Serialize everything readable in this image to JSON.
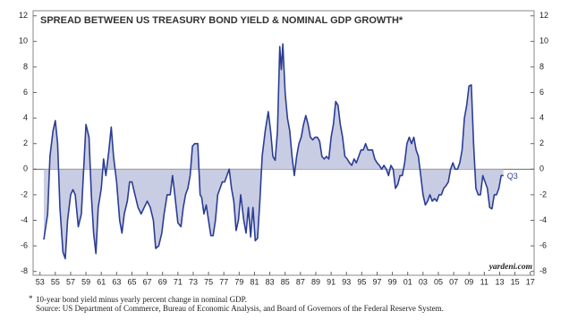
{
  "chart_data": {
    "type": "line",
    "title": "SPREAD BETWEEN US TREASURY BOND YIELD & NOMINAL GDP GROWTH*",
    "annotation": "Q3",
    "watermark": "yardeni.com",
    "footnote": {
      "marker": "*",
      "lines": [
        "10-year bond yield minus yearly percent change in nominal GDP.",
        "Source: US Department of Commerce, Bureau of Economic Analysis, and Board of Governors of the Federal Reserve System."
      ]
    },
    "color": "#2b3d94",
    "fill_color": "#c9cde3",
    "x": [
      1953.5,
      1954,
      1954.3,
      1954.7,
      1955,
      1955.3,
      1955.6,
      1956,
      1956.3,
      1956.6,
      1957,
      1957.3,
      1957.6,
      1958,
      1958.4,
      1958.7,
      1959,
      1959.4,
      1959.7,
      1960,
      1960.3,
      1960.6,
      1961,
      1961.3,
      1961.6,
      1962,
      1962.3,
      1962.6,
      1963,
      1963.4,
      1963.7,
      1964,
      1964.4,
      1964.7,
      1965,
      1965.4,
      1965.8,
      1966.2,
      1966.6,
      1967,
      1967.4,
      1967.8,
      1968.1,
      1968.5,
      1968.9,
      1969.2,
      1969.6,
      1970,
      1970.3,
      1970.6,
      1971,
      1971.4,
      1971.7,
      1972,
      1972.3,
      1972.6,
      1972.9,
      1973.2,
      1973.6,
      1973.9,
      1974.1,
      1974.4,
      1974.7,
      1975,
      1975.3,
      1975.6,
      1975.9,
      1976.2,
      1976.5,
      1976.8,
      1977.1,
      1977.4,
      1977.7,
      1978,
      1978.3,
      1978.6,
      1978.9,
      1979.2,
      1979.6,
      1979.9,
      1980.2,
      1980.5,
      1980.8,
      1981.1,
      1981.4,
      1981.7,
      1982,
      1982.4,
      1982.8,
      1983.1,
      1983.4,
      1983.7,
      1984,
      1984.3,
      1984.5,
      1984.7,
      1985,
      1985.3,
      1985.6,
      1985.9,
      1986.2,
      1986.5,
      1986.8,
      1987.1,
      1987.4,
      1987.7,
      1988,
      1988.3,
      1988.6,
      1988.9,
      1989.2,
      1989.5,
      1989.8,
      1990.1,
      1990.4,
      1990.7,
      1991,
      1991.3,
      1991.6,
      1991.9,
      1992.2,
      1992.5,
      1992.8,
      1993.1,
      1993.4,
      1993.7,
      1994,
      1994.3,
      1994.6,
      1994.9,
      1995.2,
      1995.5,
      1995.8,
      1996.1,
      1996.4,
      1996.7,
      1997,
      1997.3,
      1997.6,
      1997.9,
      1998.2,
      1998.5,
      1998.8,
      1999.1,
      1999.4,
      1999.7,
      2000,
      2000.3,
      2000.6,
      2000.9,
      2001.2,
      2001.5,
      2001.8,
      2002.1,
      2002.4,
      2002.7,
      2003,
      2003.3,
      2003.6,
      2003.9,
      2004.2,
      2004.5,
      2004.8,
      2005.1,
      2005.4,
      2005.7,
      2006,
      2006.3,
      2006.6,
      2006.9,
      2007.2,
      2007.5,
      2007.8,
      2008.1,
      2008.4,
      2008.7,
      2009,
      2009.3,
      2009.6,
      2009.9,
      2010.2,
      2010.5,
      2010.8,
      2011.1,
      2011.4,
      2011.7,
      2012,
      2012.3,
      2012.6,
      2012.9,
      2013.2,
      2013.5
    ],
    "values": [
      -5.5,
      -3.5,
      1,
      3,
      3.8,
      2,
      -3,
      -6.5,
      -7,
      -4,
      -2,
      -1.6,
      -2,
      -4.5,
      -3.5,
      0,
      3.5,
      2.5,
      -2,
      -5,
      -6.6,
      -3,
      -1.5,
      0.8,
      -0.5,
      1.5,
      3.3,
      1,
      -1,
      -4,
      -5,
      -3.5,
      -2.5,
      -1,
      -1,
      -2,
      -3,
      -3.5,
      -3,
      -2.5,
      -3,
      -4,
      -6.2,
      -6,
      -5,
      -3.5,
      -2,
      -2,
      -0.5,
      -2,
      -4.2,
      -4.5,
      -3,
      -2,
      -1.5,
      -0.5,
      1.8,
      2,
      2,
      -2,
      -2.2,
      -3.5,
      -2.8,
      -4,
      -5.2,
      -5.2,
      -4,
      -2,
      -1.5,
      -1,
      -1,
      -0.5,
      0,
      -1.5,
      -2.5,
      -4.8,
      -4,
      -2,
      -4,
      -5,
      -3,
      -5.3,
      -3,
      -5.6,
      -5.4,
      -2.5,
      1,
      3,
      4.5,
      3,
      1,
      0.7,
      3,
      9.6,
      7.8,
      9.8,
      6,
      4,
      3,
      1,
      -0.5,
      1,
      2,
      2.5,
      3.5,
      4.2,
      3.5,
      2.5,
      2.3,
      2.5,
      2.5,
      2.2,
      1,
      0.8,
      1,
      0.8,
      2.5,
      3.5,
      5.3,
      5,
      3.5,
      2.5,
      1,
      0.8,
      0.5,
      0.3,
      0.8,
      0.5,
      1,
      1.5,
      1.5,
      2,
      1.5,
      1.5,
      1.5,
      0.8,
      0.5,
      0.3,
      0,
      0.3,
      0,
      -0.5,
      0.3,
      0,
      -1.5,
      -1.2,
      -0.5,
      -0.5,
      0.5,
      2,
      2.5,
      2,
      2.5,
      1.5,
      1,
      -0.5,
      -2,
      -2.8,
      -2.5,
      -2,
      -2.5,
      -2.3,
      -2.5,
      -2,
      -2,
      -1.5,
      -1.3,
      -1,
      0,
      0.5,
      0,
      0,
      0.5,
      1.5,
      4,
      5,
      6.5,
      6.6,
      2,
      -1.5,
      -2,
      -2,
      -0.5,
      -1,
      -1.5,
      -3,
      -3.1,
      -2,
      -2,
      -1.5,
      -0.5,
      -0.5
    ],
    "xlim": [
      1952.1,
      2017.5
    ],
    "xticks": [
      {
        "value": 1953,
        "label": "53"
      },
      {
        "value": 1955,
        "label": "55"
      },
      {
        "value": 1957,
        "label": "57"
      },
      {
        "value": 1959,
        "label": "59"
      },
      {
        "value": 1961,
        "label": "61"
      },
      {
        "value": 1963,
        "label": "63"
      },
      {
        "value": 1965,
        "label": "65"
      },
      {
        "value": 1967,
        "label": "67"
      },
      {
        "value": 1969,
        "label": "69"
      },
      {
        "value": 1971,
        "label": "71"
      },
      {
        "value": 1973,
        "label": "73"
      },
      {
        "value": 1975,
        "label": "75"
      },
      {
        "value": 1977,
        "label": "77"
      },
      {
        "value": 1979,
        "label": "79"
      },
      {
        "value": 1981,
        "label": "81"
      },
      {
        "value": 1983,
        "label": "83"
      },
      {
        "value": 1985,
        "label": "85"
      },
      {
        "value": 1987,
        "label": "87"
      },
      {
        "value": 1989,
        "label": "89"
      },
      {
        "value": 1991,
        "label": "91"
      },
      {
        "value": 1993,
        "label": "93"
      },
      {
        "value": 1995,
        "label": "95"
      },
      {
        "value": 1997,
        "label": "97"
      },
      {
        "value": 1999,
        "label": "99"
      },
      {
        "value": 2001,
        "label": "01"
      },
      {
        "value": 2003,
        "label": "03"
      },
      {
        "value": 2005,
        "label": "05"
      },
      {
        "value": 2007,
        "label": "07"
      },
      {
        "value": 2009,
        "label": "09"
      },
      {
        "value": 2011,
        "label": "11"
      },
      {
        "value": 2013,
        "label": "13"
      },
      {
        "value": 2015,
        "label": "15"
      },
      {
        "value": 2017,
        "label": "17"
      }
    ],
    "ylim": [
      -8.3,
      12.4
    ],
    "yticks": [
      -8,
      -6,
      -4,
      -2,
      0,
      2,
      4,
      6,
      8,
      10,
      12
    ],
    "y2lim": [
      -8.3,
      12.4
    ],
    "y2ticks": [
      -8,
      -6,
      -4,
      -2,
      0,
      2,
      4,
      6,
      8,
      10,
      12
    ]
  }
}
